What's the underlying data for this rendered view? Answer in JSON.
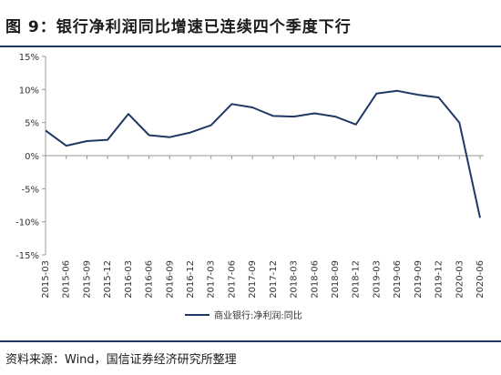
{
  "figure": {
    "title": "图 9：银行净利润同比增速已连续四个季度下行",
    "source": "资料来源：Wind，国信证券经济研究所整理"
  },
  "colors": {
    "line": "#1f3864",
    "rule": "#1f3864",
    "axis": "#999999"
  },
  "chart_data": {
    "type": "line",
    "categories": [
      "2015-03",
      "2015-06",
      "2015-09",
      "2015-12",
      "2016-03",
      "2016-06",
      "2016-09",
      "2016-12",
      "2017-03",
      "2017-06",
      "2017-09",
      "2017-12",
      "2018-03",
      "2018-06",
      "2018-09",
      "2018-12",
      "2019-03",
      "2019-06",
      "2019-09",
      "2019-12",
      "2020-03",
      "2020-06"
    ],
    "series": [
      {
        "name": "商业银行:净利润:同比",
        "values": [
          3.8,
          1.5,
          2.2,
          2.4,
          6.3,
          3.1,
          2.8,
          3.5,
          4.6,
          7.8,
          7.3,
          6.0,
          5.9,
          6.4,
          5.9,
          4.7,
          9.4,
          9.8,
          9.2,
          8.8,
          5.0,
          -9.4
        ]
      }
    ],
    "ylim": [
      -15,
      15
    ],
    "yticks": [
      15,
      10,
      5,
      0,
      -5,
      -10,
      -15
    ],
    "ytick_labels": [
      "15%",
      "10%",
      "5%",
      "0%",
      "-5%",
      "-10%",
      "-15%"
    ],
    "grid": false,
    "legend": "bottom"
  }
}
